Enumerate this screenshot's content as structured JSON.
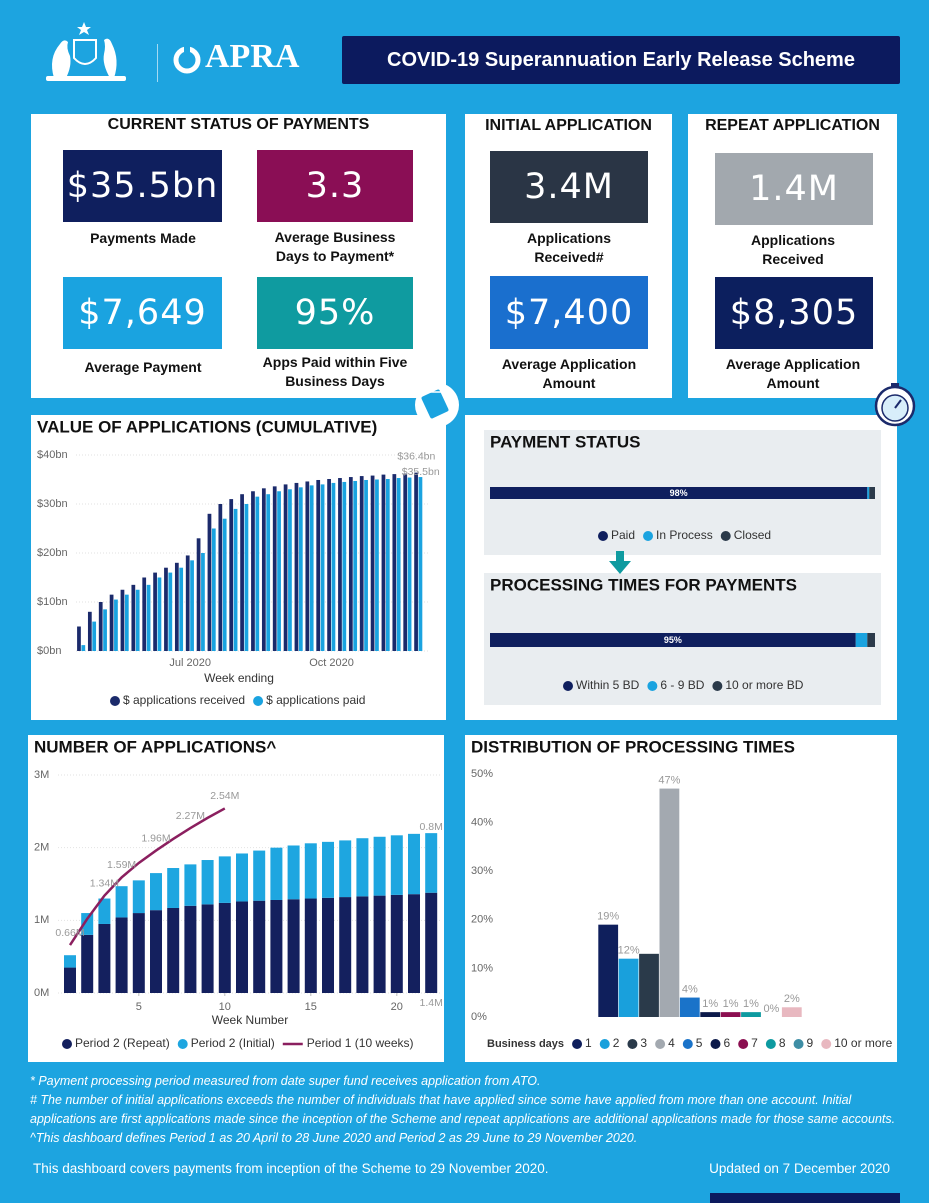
{
  "header": {
    "logo": "APRA",
    "title": "COVID-19 Superannuation Early Release Scheme"
  },
  "current_status": {
    "title": "CURRENT STATUS OF PAYMENTS",
    "cards": [
      {
        "value": "$35.5bn",
        "label": "Payments Made"
      },
      {
        "value": "3.3",
        "label": "Average Business Days to Payment*"
      },
      {
        "value": "$7,649",
        "label": "Average Payment"
      },
      {
        "value": "95%",
        "label": "Apps Paid within Five Business Days"
      }
    ]
  },
  "initial_application": {
    "title": "INITIAL APPLICATION",
    "cards": [
      {
        "value": "3.4M",
        "label": "Applications Received#"
      },
      {
        "value": "$7,400",
        "label": "Average Application Amount"
      }
    ]
  },
  "repeat_application": {
    "title": "REPEAT APPLICATION",
    "cards": [
      {
        "value": "1.4M",
        "label": "Applications Received"
      },
      {
        "value": "$8,305",
        "label": "Average Application Amount"
      }
    ]
  },
  "chart_data": [
    {
      "type": "bar",
      "title": "VALUE OF APPLICATIONS (CUMULATIVE)",
      "xlabel": "Week ending",
      "categories": [
        null,
        null,
        null,
        null,
        null,
        null,
        null,
        null,
        null,
        null,
        "Jul 2020",
        null,
        null,
        null,
        null,
        null,
        null,
        null,
        null,
        null,
        null,
        null,
        null,
        "Oct 2020",
        null,
        null,
        null,
        null,
        null,
        null,
        null,
        null
      ],
      "series": [
        {
          "name": "$ applications received",
          "color": "#1b2a6b",
          "values": [
            5,
            8,
            10,
            11.5,
            12.5,
            13.5,
            15,
            16,
            17,
            18,
            19.5,
            23,
            28,
            30,
            31,
            32,
            32.6,
            33.2,
            33.6,
            34,
            34.3,
            34.6,
            34.9,
            35.1,
            35.3,
            35.5,
            35.7,
            35.8,
            36,
            36.1,
            36.2,
            36.4
          ],
          "value_labels": [
            null,
            null,
            null,
            null,
            null,
            null,
            null,
            null,
            null,
            null,
            null,
            null,
            null,
            null,
            null,
            null,
            null,
            null,
            null,
            null,
            null,
            null,
            null,
            null,
            null,
            null,
            null,
            null,
            null,
            null,
            null,
            "$36.4bn"
          ]
        },
        {
          "name": "$ applications paid",
          "color": "#1aa3e0",
          "values": [
            1.2,
            6,
            8.5,
            10.5,
            11.5,
            12.5,
            13.5,
            15,
            16,
            17,
            18.5,
            20,
            25,
            27,
            29,
            30,
            31.5,
            32,
            32.6,
            33,
            33.4,
            33.8,
            34,
            34.3,
            34.5,
            34.7,
            34.9,
            35,
            35.1,
            35.3,
            35.4,
            35.5
          ],
          "value_labels": [
            null,
            null,
            null,
            null,
            null,
            null,
            null,
            null,
            null,
            null,
            null,
            null,
            null,
            null,
            null,
            null,
            null,
            null,
            null,
            null,
            null,
            null,
            null,
            null,
            null,
            null,
            null,
            null,
            null,
            null,
            null,
            "$35.5bn"
          ]
        }
      ],
      "ylim": [
        0,
        40
      ],
      "yticks": [
        {
          "value": 0,
          "label": "$0bn"
        },
        {
          "value": 10,
          "label": "$10bn"
        },
        {
          "value": 20,
          "label": "$20bn"
        },
        {
          "value": 30,
          "label": "$30bn"
        },
        {
          "value": 40,
          "label": "$40bn"
        }
      ],
      "grid": true,
      "legend": "bottom"
    },
    {
      "type": "hbar",
      "title": "PAYMENT STATUS",
      "series": [
        {
          "name": "Paid",
          "color": "#0f1f5e",
          "values": [
            98
          ],
          "value_labels": [
            "98%"
          ]
        },
        {
          "name": "In Process",
          "color": "#1aa3e0",
          "values": [
            0.5
          ]
        },
        {
          "name": "Closed",
          "color": "#2b3a4a",
          "values": [
            1.5
          ]
        }
      ],
      "xlim": [
        0,
        100
      ],
      "legend": "bottom"
    },
    {
      "type": "hbar",
      "title": "PROCESSING TIMES FOR PAYMENTS",
      "series": [
        {
          "name": "Within 5 BD",
          "color": "#0f1f5e",
          "values": [
            95
          ],
          "value_labels": [
            "95%"
          ]
        },
        {
          "name": "6 - 9 BD",
          "color": "#1aa3e0",
          "values": [
            3
          ]
        },
        {
          "name": "10 or more BD",
          "color": "#2b3a4a",
          "values": [
            2
          ]
        }
      ],
      "xlim": [
        0,
        100
      ],
      "legend": "bottom"
    },
    {
      "type": "combo",
      "title": "NUMBER OF APPLICATIONS^",
      "xlabel": "Week Number",
      "x": [
        1,
        2,
        3,
        4,
        5,
        6,
        7,
        8,
        9,
        10,
        11,
        12,
        13,
        14,
        15,
        16,
        17,
        18,
        19,
        20,
        21,
        22
      ],
      "series": [
        {
          "name": "Period 2 (Repeat)",
          "color": "#14205e",
          "values": [
            0.35,
            0.8,
            0.95,
            1.04,
            1.1,
            1.14,
            1.17,
            1.2,
            1.22,
            1.24,
            1.26,
            1.27,
            1.28,
            1.29,
            1.3,
            1.31,
            1.32,
            1.33,
            1.34,
            1.35,
            1.36,
            1.38
          ],
          "value_labels": [
            null,
            null,
            null,
            null,
            null,
            null,
            null,
            null,
            null,
            null,
            null,
            null,
            null,
            null,
            null,
            null,
            null,
            null,
            null,
            null,
            null,
            "1.4M"
          ]
        },
        {
          "name": "Period 2 (Initial)",
          "color": "#1ea6e0",
          "values": [
            0.17,
            0.3,
            0.35,
            0.43,
            0.45,
            0.51,
            0.55,
            0.57,
            0.61,
            0.64,
            0.66,
            0.69,
            0.72,
            0.74,
            0.76,
            0.77,
            0.78,
            0.8,
            0.81,
            0.82,
            0.83,
            0.82
          ],
          "value_labels": [
            null,
            null,
            null,
            null,
            null,
            null,
            null,
            null,
            null,
            null,
            null,
            null,
            null,
            null,
            null,
            null,
            null,
            null,
            null,
            null,
            null,
            "0.8M"
          ]
        },
        {
          "name": "Period 1 (10 weeks)",
          "color": "#8b1f5f",
          "type": "line",
          "x": [
            1,
            2,
            3,
            4,
            5,
            6,
            7,
            8,
            9,
            10
          ],
          "values": [
            0.66,
            1.02,
            1.34,
            1.59,
            1.79,
            1.96,
            2.12,
            2.27,
            2.41,
            2.54
          ],
          "value_labels": [
            "0.66M",
            null,
            "1.34M",
            "1.59M",
            null,
            "1.96M",
            null,
            "2.27M",
            null,
            "2.54M"
          ]
        }
      ],
      "xlim": [
        0.5,
        22.5
      ],
      "xticks": [
        5,
        10,
        15,
        20
      ],
      "ylim": [
        0,
        3
      ],
      "yticks": [
        {
          "value": 0,
          "label": "0M"
        },
        {
          "value": 1,
          "label": "1M"
        },
        {
          "value": 2,
          "label": "2M"
        },
        {
          "value": 3,
          "label": "3M"
        }
      ],
      "grid": true,
      "legend": "bottom"
    },
    {
      "type": "bar",
      "title": "DISTRIBUTION OF PROCESSING TIMES",
      "legend_title": "Business days",
      "categories": [
        "1",
        "2",
        "3",
        "4",
        "5",
        "6",
        "7",
        "8",
        "9",
        "10 or more"
      ],
      "values": [
        19,
        12,
        13,
        47,
        4,
        1,
        1,
        1,
        0,
        2
      ],
      "value_labels": [
        "19%",
        "12%",
        null,
        "47%",
        "4%",
        "1%",
        "1%",
        "1%",
        "0%",
        "2%"
      ],
      "colors": [
        "#0f1f5c",
        "#19a0dc",
        "#2a3a4a",
        "#a3a9b0",
        "#1a73c9",
        "#0c1a4a",
        "#8b0e50",
        "#0d9aa0",
        "#3e8ea5",
        "#e8b8c0"
      ],
      "ylim": [
        0,
        50
      ],
      "yticks": [
        {
          "value": 0,
          "label": "0%"
        },
        {
          "value": 10,
          "label": "10%"
        },
        {
          "value": 20,
          "label": "20%"
        },
        {
          "value": 30,
          "label": "30%"
        },
        {
          "value": 40,
          "label": "40%"
        },
        {
          "value": 50,
          "label": "50%"
        }
      ],
      "grid": false,
      "legend": "bottom"
    }
  ],
  "footnotes": [
    "* Payment processing period measured from date super fund receives application from ATO.",
    "# The number of initial applications exceeds the number of individuals that have applied since some have applied from more than one account. Initial applications are first applications made since the inception of the Scheme and repeat applications are additional applications made for those same accounts.",
    "^This dashboard defines Period 1 as 20 April to 28 June 2020 and Period 2 as 29 June to 29 November 2020."
  ],
  "footer": {
    "coverage": "This dashboard covers payments from inception of the Scheme to 29 November 2020.",
    "updated": "Updated on 7 December 2020"
  }
}
